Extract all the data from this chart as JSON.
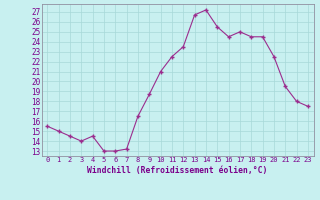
{
  "x": [
    0,
    1,
    2,
    3,
    4,
    5,
    6,
    7,
    8,
    9,
    10,
    11,
    12,
    13,
    14,
    15,
    16,
    17,
    18,
    19,
    20,
    21,
    22,
    23
  ],
  "y": [
    15.5,
    15.0,
    14.5,
    14.0,
    14.5,
    13.0,
    13.0,
    13.2,
    16.5,
    18.7,
    21.0,
    22.5,
    23.5,
    26.7,
    27.2,
    25.5,
    24.5,
    25.0,
    24.5,
    24.5,
    22.5,
    19.5,
    18.0,
    17.5
  ],
  "line_color": "#9b2d8e",
  "marker_color": "#9b2d8e",
  "bg_color": "#c8f0f0",
  "grid_color": "#a8d8d8",
  "xlabel": "Windchill (Refroidissement éolien,°C)",
  "ylabel_ticks": [
    13,
    14,
    15,
    16,
    17,
    18,
    19,
    20,
    21,
    22,
    23,
    24,
    25,
    26,
    27
  ],
  "ylim": [
    12.5,
    27.8
  ],
  "xlim": [
    -0.5,
    23.5
  ],
  "font_color": "#7b008b",
  "axis_color": "#9090a0"
}
